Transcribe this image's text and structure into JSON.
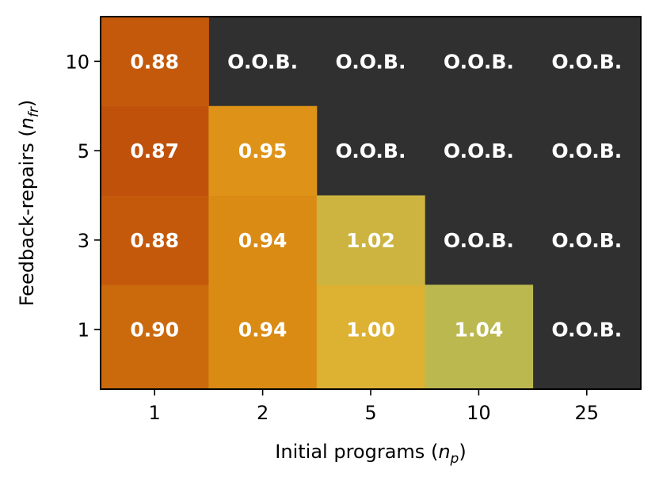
{
  "chart_data": {
    "type": "heatmap",
    "title": "",
    "xlabel": "Initial programs",
    "xlabel_symbol": "n",
    "xlabel_subscript": "p",
    "ylabel": "Feedback-repairs",
    "ylabel_symbol": "n",
    "ylabel_subscript": "fr",
    "x_categories": [
      "1",
      "2",
      "5",
      "10",
      "25"
    ],
    "y_categories": [
      "1",
      "3",
      "5",
      "10"
    ],
    "out_of_budget_label": "O.O.B.",
    "out_of_budget_color": "#303030",
    "color_scale": {
      "min": 0.87,
      "max": 1.04,
      "stops": [
        "#c0510a",
        "#d5800f",
        "#ebae25",
        "#bcb850"
      ]
    },
    "values": [
      [
        0.9,
        0.94,
        1.0,
        1.04,
        null
      ],
      [
        0.88,
        0.94,
        1.02,
        null,
        null
      ],
      [
        0.87,
        0.95,
        null,
        null,
        null
      ],
      [
        0.88,
        null,
        null,
        null,
        null
      ]
    ],
    "value_labels": [
      [
        "0.90",
        "0.94",
        "1.00",
        "1.04",
        "O.O.B."
      ],
      [
        "0.88",
        "0.94",
        "1.02",
        "O.O.B.",
        "O.O.B."
      ],
      [
        "0.87",
        "0.95",
        "O.O.B.",
        "O.O.B.",
        "O.O.B."
      ],
      [
        "0.88",
        "O.O.B.",
        "O.O.B.",
        "O.O.B.",
        "O.O.B."
      ]
    ]
  }
}
